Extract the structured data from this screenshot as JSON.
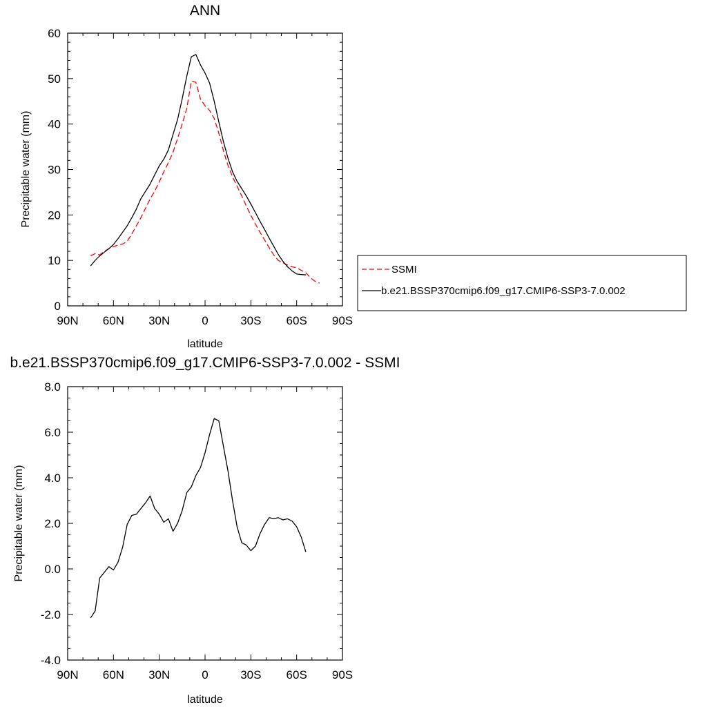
{
  "chart_data": [
    {
      "type": "line",
      "title": "ANN",
      "xlabel": "latitude",
      "ylabel": "Precipitable water (mm)",
      "xlim": [
        90,
        -90
      ],
      "ylim": [
        0,
        60
      ],
      "x_ticks": [
        {
          "value": 90,
          "label": "90N"
        },
        {
          "value": 60,
          "label": "60N"
        },
        {
          "value": 30,
          "label": "30N"
        },
        {
          "value": 0,
          "label": "0"
        },
        {
          "value": -30,
          "label": "30S"
        },
        {
          "value": -60,
          "label": "60S"
        },
        {
          "value": -90,
          "label": "90S"
        }
      ],
      "y_ticks": [
        {
          "value": 0,
          "label": "0"
        },
        {
          "value": 10,
          "label": "10"
        },
        {
          "value": 20,
          "label": "20"
        },
        {
          "value": 30,
          "label": "30"
        },
        {
          "value": 40,
          "label": "40"
        },
        {
          "value": 50,
          "label": "50"
        },
        {
          "value": 60,
          "label": "60"
        }
      ],
      "legend": "right",
      "series": [
        {
          "name": "SSMI",
          "color": "#ff0000",
          "dash": "dashed",
          "x": [
            75,
            72,
            69,
            66,
            63,
            60,
            57,
            54,
            51,
            48,
            45,
            42,
            39,
            36,
            33,
            30,
            27,
            24,
            21,
            18,
            15,
            12,
            9,
            6,
            3,
            0,
            -3,
            -6,
            -9,
            -12,
            -15,
            -18,
            -21,
            -24,
            -27,
            -30,
            -33,
            -36,
            -39,
            -42,
            -45,
            -48,
            -51,
            -54,
            -57,
            -60,
            -63,
            -66,
            -69,
            -72,
            -75
          ],
          "y": [
            11.0,
            11.5,
            11.2,
            12.0,
            12.6,
            13.0,
            13.4,
            13.6,
            14.2,
            15.8,
            17.6,
            19.4,
            21.5,
            23.5,
            25.2,
            27.3,
            29.5,
            31.5,
            33.8,
            36.8,
            40.0,
            43.4,
            49.4,
            49.2,
            45.5,
            44.0,
            43.0,
            41.2,
            38.0,
            34.2,
            30.9,
            28.4,
            26.3,
            24.2,
            22.0,
            19.9,
            18.0,
            16.2,
            14.5,
            12.8,
            11.2,
            10.0,
            9.5,
            9.0,
            8.6,
            8.4,
            7.8,
            7.3,
            6.2,
            5.4,
            5.0
          ]
        },
        {
          "name": "b.e21.BSSP370cmip6.f09_g17.CMIP6-SSP3-7.0.002",
          "color": "#000000",
          "dash": "solid",
          "x": [
            75,
            72,
            69,
            66,
            63,
            60,
            57,
            54,
            51,
            48,
            45,
            42,
            39,
            36,
            33,
            30,
            27,
            24,
            21,
            18,
            15,
            12,
            9,
            6,
            3,
            0,
            -3,
            -6,
            -9,
            -12,
            -15,
            -18,
            -21,
            -24,
            -27,
            -30,
            -33,
            -36,
            -39,
            -42,
            -45,
            -48,
            -51,
            -54,
            -57,
            -60,
            -63,
            -66
          ],
          "y": [
            8.8,
            10.0,
            11.0,
            11.8,
            12.6,
            13.5,
            14.8,
            16.2,
            17.6,
            19.4,
            21.3,
            23.6,
            25.2,
            26.8,
            28.8,
            30.8,
            32.3,
            34.3,
            37.7,
            41.0,
            45.5,
            50.5,
            54.8,
            55.3,
            53.0,
            51.2,
            49.0,
            45.0,
            40.5,
            36.2,
            32.5,
            29.5,
            27.4,
            25.8,
            24.2,
            22.4,
            20.5,
            18.6,
            16.8,
            14.9,
            13.1,
            11.3,
            9.8,
            8.6,
            7.7,
            7.0,
            6.9,
            6.8
          ]
        }
      ]
    },
    {
      "type": "line",
      "title": "b.e21.BSSP370cmip6.f09_g17.CMIP6-SSP3-7.0.002 - SSMI",
      "xlabel": "latitude",
      "ylabel": "Precipitable water (mm)",
      "xlim": [
        90,
        -90
      ],
      "ylim": [
        -4.0,
        8.0
      ],
      "x_ticks": [
        {
          "value": 90,
          "label": "90N"
        },
        {
          "value": 60,
          "label": "60N"
        },
        {
          "value": 30,
          "label": "30N"
        },
        {
          "value": 0,
          "label": "0"
        },
        {
          "value": -30,
          "label": "30S"
        },
        {
          "value": -60,
          "label": "60S"
        },
        {
          "value": -90,
          "label": "90S"
        }
      ],
      "y_ticks": [
        {
          "value": -4.0,
          "label": "-4.0"
        },
        {
          "value": -2.0,
          "label": "-2.0"
        },
        {
          "value": 0.0,
          "label": "0.0"
        },
        {
          "value": 2.0,
          "label": "2.0"
        },
        {
          "value": 4.0,
          "label": "4.0"
        },
        {
          "value": 6.0,
          "label": "6.0"
        },
        {
          "value": 8.0,
          "label": "8.0"
        }
      ],
      "series": [
        {
          "color": "#000000",
          "dash": "solid",
          "x": [
            75,
            72,
            69,
            66,
            63,
            60,
            57,
            54,
            51,
            48,
            45,
            42,
            39,
            36,
            33,
            30,
            27,
            24,
            21,
            18,
            15,
            12,
            9,
            6,
            3,
            0,
            -3,
            -6,
            -9,
            -12,
            -15,
            -18,
            -21,
            -24,
            -27,
            -30,
            -33,
            -36,
            -39,
            -42,
            -45,
            -48,
            -51,
            -54,
            -57,
            -60,
            -63,
            -66
          ],
          "y": [
            -2.15,
            -1.85,
            -0.4,
            -0.15,
            0.1,
            -0.05,
            0.3,
            0.95,
            1.95,
            2.35,
            2.4,
            2.65,
            2.9,
            3.2,
            2.65,
            2.4,
            2.05,
            2.2,
            1.65,
            2.0,
            2.55,
            3.35,
            3.6,
            4.1,
            4.45,
            5.1,
            5.9,
            6.6,
            6.5,
            5.4,
            4.3,
            3.0,
            1.85,
            1.15,
            1.05,
            0.8,
            1.0,
            1.55,
            1.95,
            2.25,
            2.2,
            2.25,
            2.15,
            2.2,
            2.1,
            1.85,
            1.4,
            0.75
          ]
        }
      ]
    }
  ]
}
